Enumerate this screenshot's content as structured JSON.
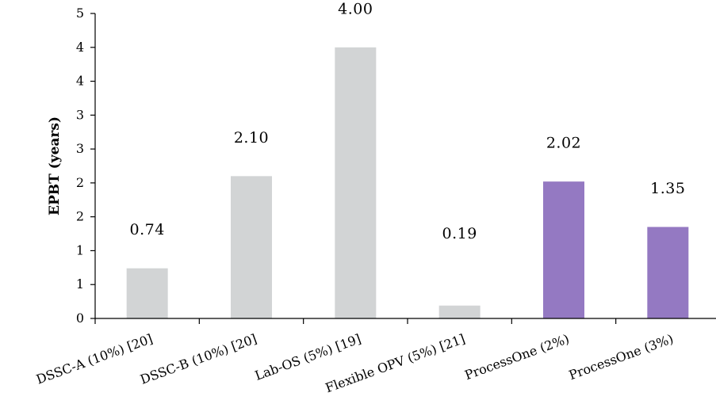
{
  "chart_data": {
    "type": "bar",
    "categories": [
      "DSSC-A (10%) [20]",
      "DSSC-B (10%) [20]",
      "Lab-OS (5%) [19]",
      "Flexible OPV (5%) [21]",
      "ProcessOne  (2%)",
      "ProcessOne  (3%)"
    ],
    "values": [
      0.74,
      2.1,
      4.0,
      0.19,
      2.02,
      1.35
    ],
    "data_labels": [
      "0.74",
      "2.10",
      "4.00",
      "0.19",
      "2.02",
      "1.35"
    ],
    "bar_colors": [
      "#d2d4d5",
      "#d2d4d5",
      "#d2d4d5",
      "#d2d4d5",
      "#9479c2",
      "#9479c2"
    ],
    "ylabel": "EPBT (years)",
    "xlabel": "",
    "title": "",
    "ylim": [
      0,
      4.5
    ],
    "yticks": [
      0,
      0.5,
      1,
      1.5,
      2,
      2.5,
      3,
      3.5,
      4,
      4.5
    ],
    "ytick_labels": [
      "0",
      "1",
      "1",
      "2",
      "2",
      "3",
      "3",
      "4",
      "4",
      "5"
    ],
    "grid": false,
    "legend": "none"
  }
}
